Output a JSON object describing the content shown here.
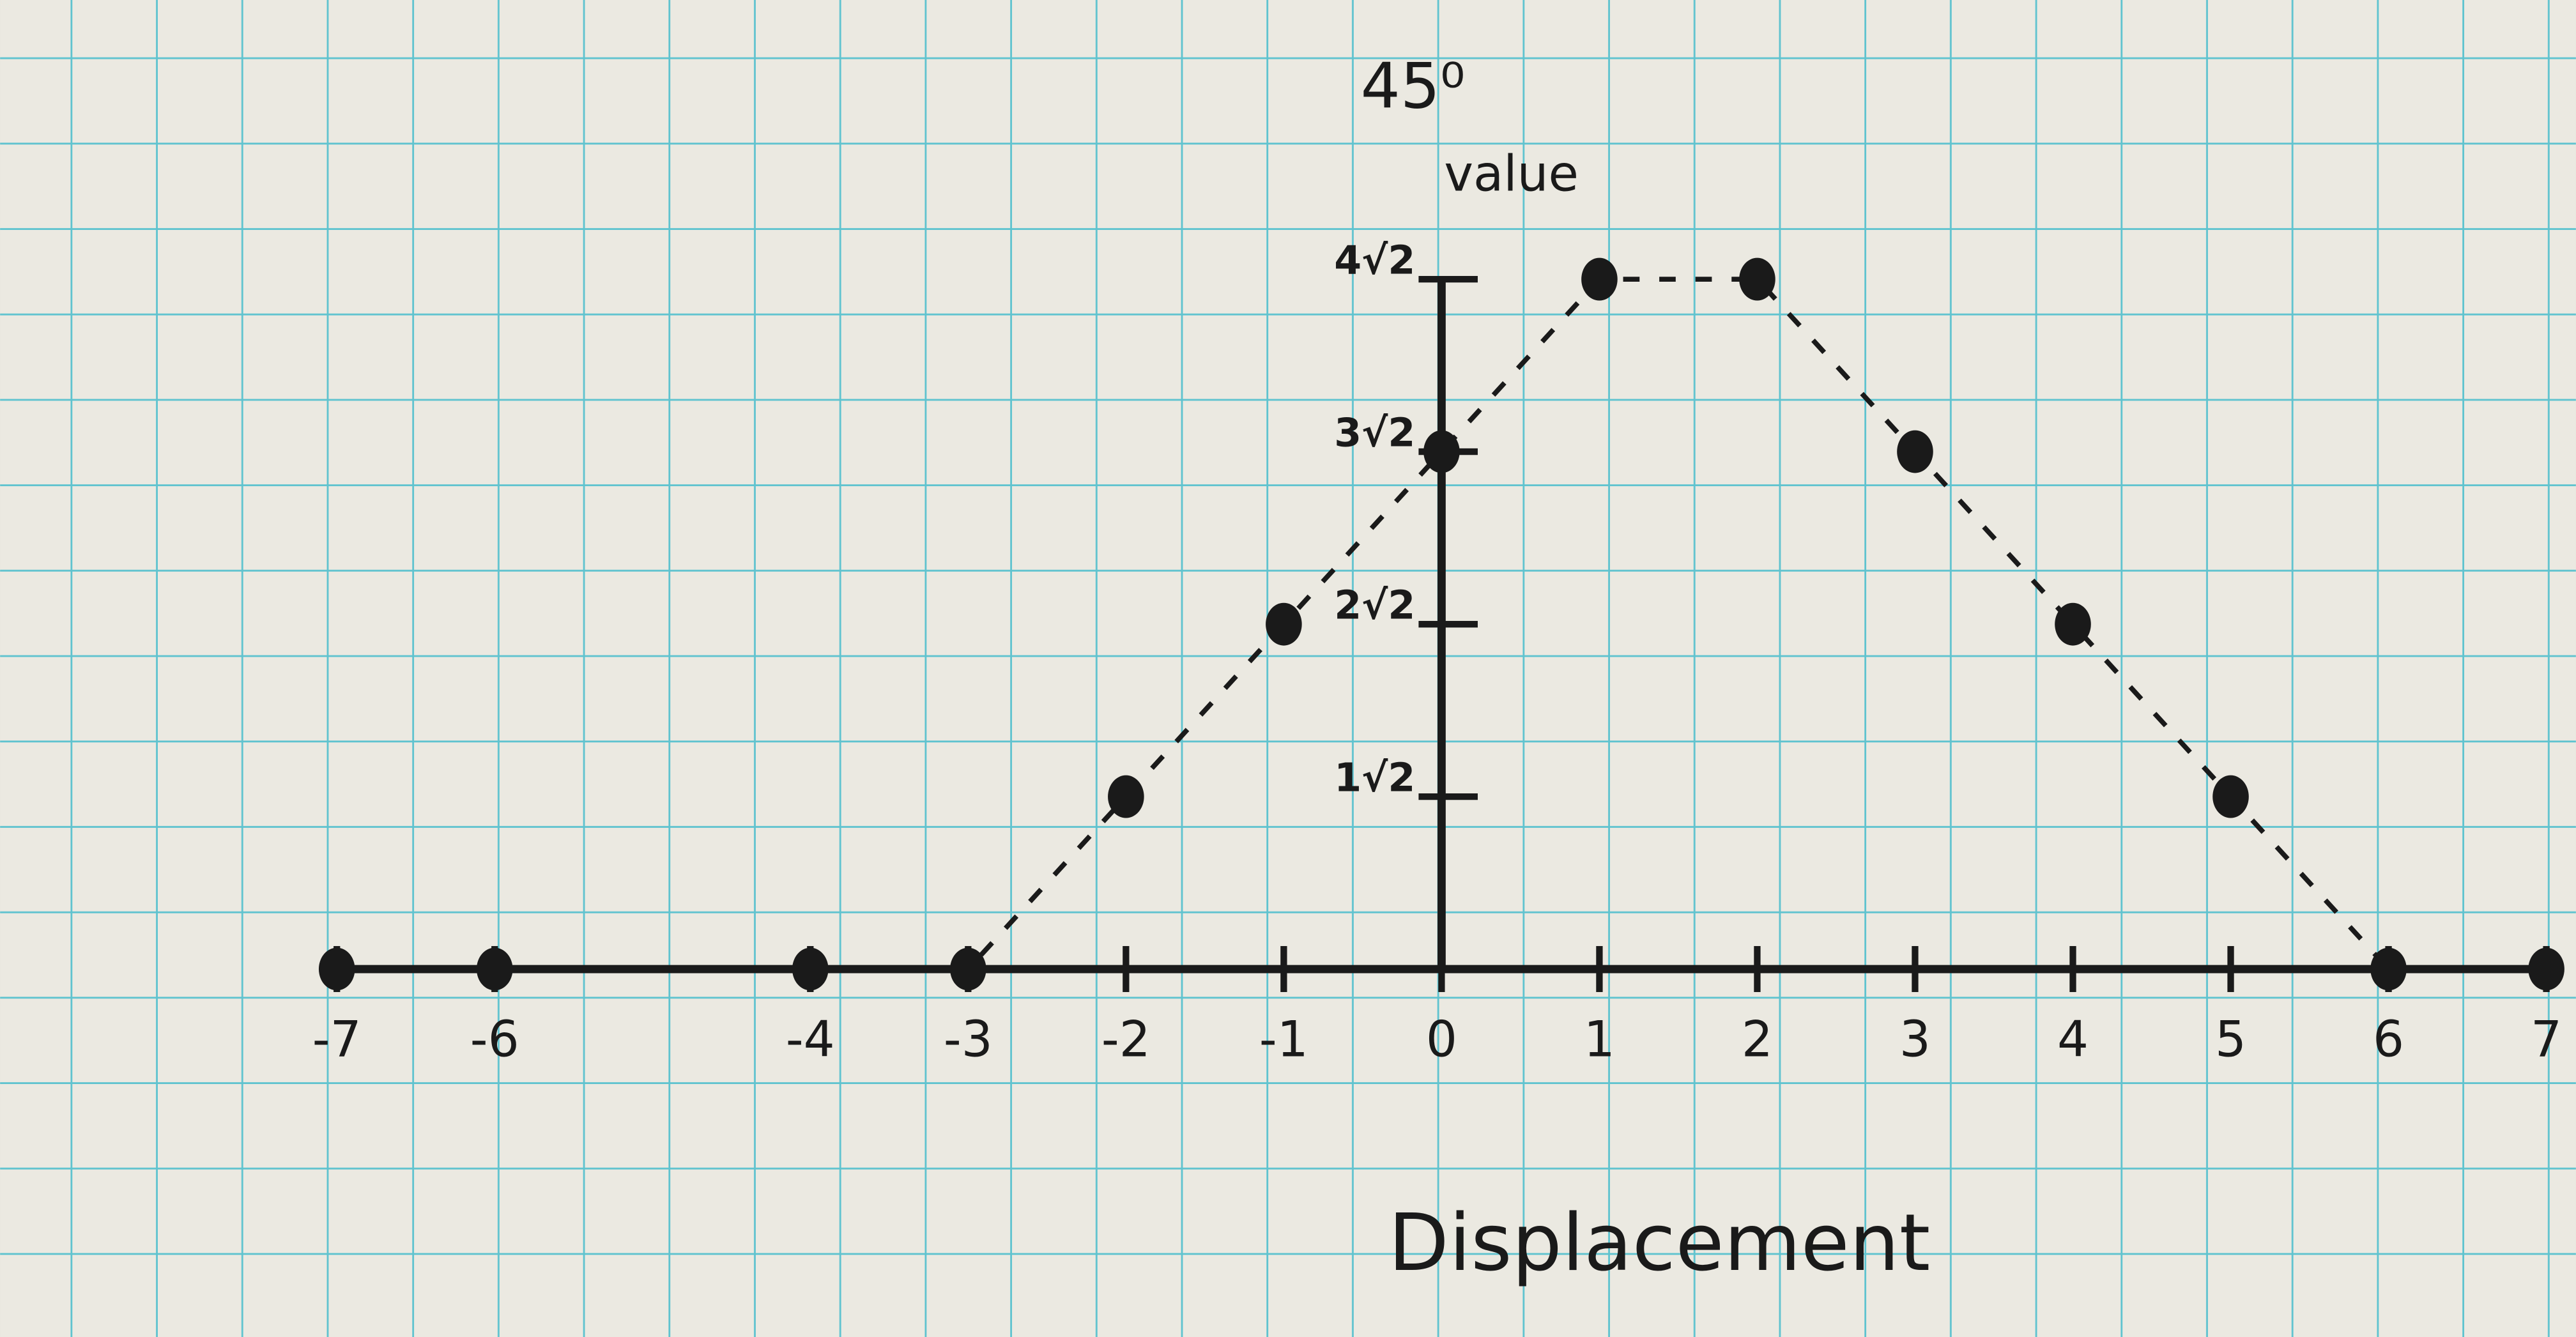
{
  "chart_data": {
    "type": "line",
    "title": "45⁰",
    "subtitle": "value",
    "x_label": "Displacement",
    "x": [
      -7,
      -6,
      -4,
      -3,
      -2,
      -1,
      0,
      1,
      2,
      3,
      4,
      5,
      6,
      7
    ],
    "series": [
      {
        "color": "#1a1a1a",
        "values": [
          0,
          0,
          0,
          0,
          1.414,
          2.828,
          4.243,
          5.657,
          5.657,
          4.243,
          2.828,
          1.414,
          0,
          0
        ]
      }
    ],
    "xlim": [
      -7,
      7
    ],
    "ylim": [
      0,
      5.657
    ],
    "xticks": [
      -7,
      -6,
      -4,
      -3,
      -2,
      -1,
      0,
      1,
      2,
      3,
      4,
      5,
      6,
      7
    ],
    "yticks": [
      {
        "value": 1.414,
        "label": "1√2"
      },
      {
        "value": 2.828,
        "label": "2√2"
      },
      {
        "value": 4.243,
        "label": "3√2"
      },
      {
        "value": 5.657,
        "label": "4√2"
      }
    ],
    "line_style": "dashed"
  }
}
